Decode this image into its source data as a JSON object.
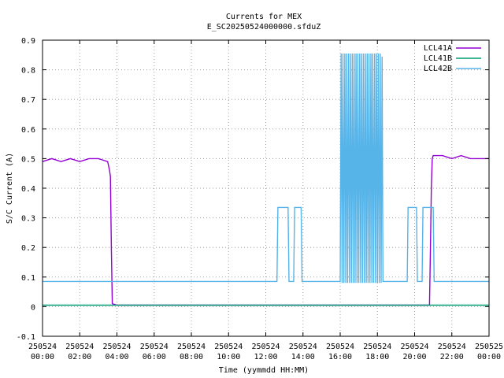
{
  "chart_data": {
    "type": "line",
    "title": "Currents for MEX",
    "subtitle": "E_SC20250524000000.sfduZ",
    "xlabel": "Time (yymmdd HH:MM)",
    "ylabel": "S/C Current (A)",
    "x_unit": "hours",
    "xlim": [
      0,
      24
    ],
    "ylim": [
      -0.1,
      0.9
    ],
    "grid": true,
    "legend_position": "top-right",
    "x_ticks": [
      {
        "value": 0,
        "date": "250524",
        "time": "00:00"
      },
      {
        "value": 2,
        "date": "250524",
        "time": "02:00"
      },
      {
        "value": 4,
        "date": "250524",
        "time": "04:00"
      },
      {
        "value": 6,
        "date": "250524",
        "time": "06:00"
      },
      {
        "value": 8,
        "date": "250524",
        "time": "08:00"
      },
      {
        "value": 10,
        "date": "250524",
        "time": "10:00"
      },
      {
        "value": 12,
        "date": "250524",
        "time": "12:00"
      },
      {
        "value": 14,
        "date": "250524",
        "time": "14:00"
      },
      {
        "value": 16,
        "date": "250524",
        "time": "16:00"
      },
      {
        "value": 18,
        "date": "250524",
        "time": "18:00"
      },
      {
        "value": 20,
        "date": "250524",
        "time": "20:00"
      },
      {
        "value": 22,
        "date": "250524",
        "time": "22:00"
      },
      {
        "value": 24,
        "date": "250525",
        "time": "00:00"
      }
    ],
    "y_ticks": [
      {
        "value": -0.1,
        "label": "-0.1"
      },
      {
        "value": 0,
        "label": "0"
      },
      {
        "value": 0.1,
        "label": "0.1"
      },
      {
        "value": 0.2,
        "label": "0.2"
      },
      {
        "value": 0.3,
        "label": "0.3"
      },
      {
        "value": 0.4,
        "label": "0.4"
      },
      {
        "value": 0.5,
        "label": "0.5"
      },
      {
        "value": 0.6,
        "label": "0.6"
      },
      {
        "value": 0.7,
        "label": "0.7"
      },
      {
        "value": 0.8,
        "label": "0.8"
      },
      {
        "value": 0.9,
        "label": "0.9"
      }
    ],
    "series": [
      {
        "name": "LCL41A",
        "color": "#9400d3",
        "x": [
          0,
          0.5,
          1.0,
          1.5,
          2.0,
          2.5,
          3.0,
          3.5,
          3.6,
          3.65,
          3.7,
          3.75,
          4.0,
          8.0,
          12.0,
          16.0,
          20.0,
          20.8,
          20.85,
          20.9,
          20.95,
          21.0,
          21.5,
          22.0,
          22.5,
          23.0,
          23.5,
          24.0
        ],
        "y": [
          0.49,
          0.5,
          0.49,
          0.5,
          0.49,
          0.5,
          0.5,
          0.49,
          0.46,
          0.44,
          0.2,
          0.01,
          0.005,
          0.005,
          0.005,
          0.005,
          0.005,
          0.005,
          0.2,
          0.41,
          0.5,
          0.51,
          0.51,
          0.5,
          0.51,
          0.5,
          0.5,
          0.5
        ]
      },
      {
        "name": "LCL41B",
        "color": "#009e73",
        "x": [
          0,
          2,
          4,
          6,
          8,
          10,
          12,
          14,
          16,
          18,
          20,
          22,
          24
        ],
        "y": [
          0.005,
          0.005,
          0.005,
          0.005,
          0.005,
          0.005,
          0.005,
          0.005,
          0.005,
          0.005,
          0.005,
          0.005,
          0.005
        ]
      },
      {
        "name": "LCL42B",
        "color": "#56b4e9",
        "x": [
          0,
          12.6,
          12.65,
          13.2,
          13.25,
          13.5,
          13.55,
          13.9,
          13.95,
          16.0,
          16.05,
          16.1,
          16.15,
          16.2,
          16.25,
          16.3,
          16.35,
          16.4,
          16.45,
          16.5,
          16.55,
          16.6,
          16.65,
          16.7,
          16.75,
          16.8,
          16.85,
          16.9,
          16.95,
          17.0,
          17.05,
          17.1,
          17.15,
          17.2,
          17.25,
          17.3,
          17.35,
          17.4,
          17.45,
          17.5,
          17.55,
          17.6,
          17.65,
          17.7,
          17.75,
          17.8,
          17.85,
          17.9,
          17.95,
          18.0,
          18.05,
          18.1,
          18.15,
          18.2,
          18.25,
          18.3,
          18.35,
          19.6,
          19.65,
          20.1,
          20.15,
          20.4,
          20.45,
          21.0,
          21.05,
          24.0
        ],
        "y": [
          0.085,
          0.085,
          0.335,
          0.335,
          0.085,
          0.085,
          0.335,
          0.335,
          0.085,
          0.085,
          0.855,
          0.08,
          0.855,
          0.08,
          0.855,
          0.08,
          0.855,
          0.08,
          0.855,
          0.08,
          0.855,
          0.08,
          0.855,
          0.08,
          0.855,
          0.08,
          0.855,
          0.08,
          0.855,
          0.08,
          0.855,
          0.08,
          0.855,
          0.08,
          0.855,
          0.08,
          0.855,
          0.08,
          0.855,
          0.08,
          0.855,
          0.08,
          0.855,
          0.08,
          0.855,
          0.08,
          0.855,
          0.08,
          0.855,
          0.08,
          0.855,
          0.08,
          0.855,
          0.08,
          0.845,
          0.085,
          0.085,
          0.085,
          0.335,
          0.335,
          0.085,
          0.085,
          0.335,
          0.335,
          0.085,
          0.085
        ]
      }
    ]
  }
}
